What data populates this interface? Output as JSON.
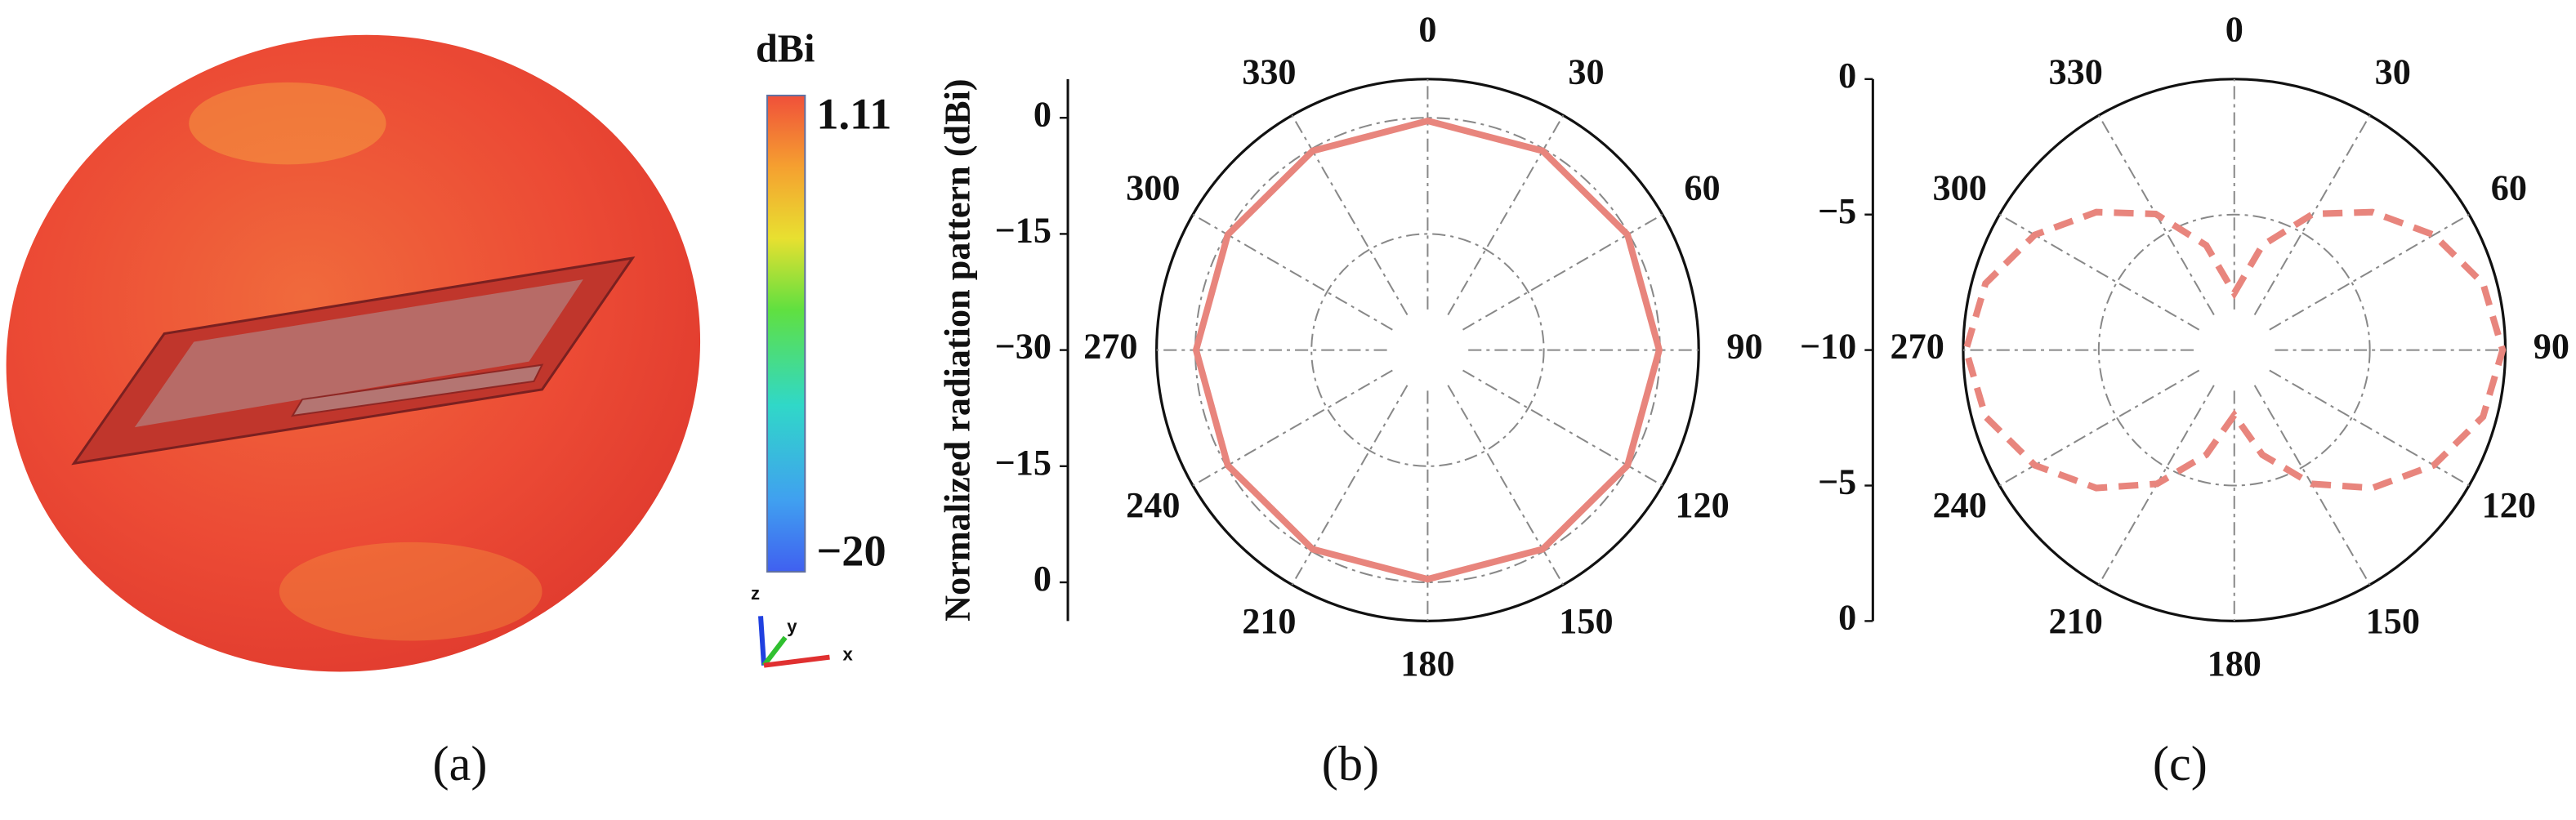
{
  "chart_data": [
    {
      "type": "colorbar",
      "title": "dBi",
      "clim": [
        -20,
        1.11
      ],
      "cticks": [
        1.11,
        {
          "value": -20,
          "label": "−20"
        }
      ],
      "triad_labels": [
        "z",
        "y",
        "x"
      ],
      "caption": "(a)"
    },
    {
      "type": "polar",
      "ylabel": "Normalized radiation pattern (dBi)",
      "caption": "(b)",
      "rlim": [
        -30,
        5
      ],
      "rticks": [
        0,
        {
          "value": -15,
          "label": "−15"
        },
        {
          "value": -30,
          "label": "−30"
        },
        {
          "value": -15,
          "label": "−15"
        },
        0
      ],
      "thetaticks": [
        0,
        30,
        60,
        90,
        120,
        150,
        180,
        210,
        240,
        270,
        300,
        330
      ],
      "grid": true,
      "theta": [
        0,
        30,
        60,
        90,
        120,
        150,
        180,
        210,
        240,
        270,
        300,
        330
      ],
      "series": [
        {
          "color": "#e8857d",
          "line_style": "solid",
          "values": [
            -0.4,
            -0.3,
            -0.2,
            -0.1,
            -0.2,
            -0.3,
            -0.4,
            -0.3,
            -0.2,
            -0.1,
            -0.2,
            -0.3
          ]
        }
      ]
    },
    {
      "type": "polar",
      "caption": "(c)",
      "rlim": [
        -10,
        0
      ],
      "rticks": [
        0,
        {
          "value": -5,
          "label": "−5"
        },
        {
          "value": -10,
          "label": "−10"
        },
        {
          "value": -5,
          "label": "−5"
        },
        0
      ],
      "thetaticks": [
        0,
        30,
        60,
        90,
        120,
        150,
        180,
        210,
        240,
        270,
        300,
        330
      ],
      "grid": true,
      "theta": [
        0,
        15,
        30,
        45,
        60,
        75,
        90,
        105,
        120,
        135,
        150,
        165,
        180,
        195,
        210,
        225,
        240,
        255,
        270,
        285,
        300,
        315,
        330,
        345
      ],
      "series": [
        {
          "color": "#e8857d",
          "line_style": "dashed",
          "values": [
            -7.9,
            -6.0,
            -4.2,
            -2.8,
            -1.5,
            -0.5,
            -0.1,
            -0.5,
            -1.5,
            -2.8,
            -4.3,
            -6.0,
            -7.6,
            -6.0,
            -4.3,
            -2.8,
            -1.5,
            -0.5,
            -0.1,
            -0.5,
            -1.5,
            -2.8,
            -4.2,
            -6.0
          ]
        }
      ]
    }
  ]
}
